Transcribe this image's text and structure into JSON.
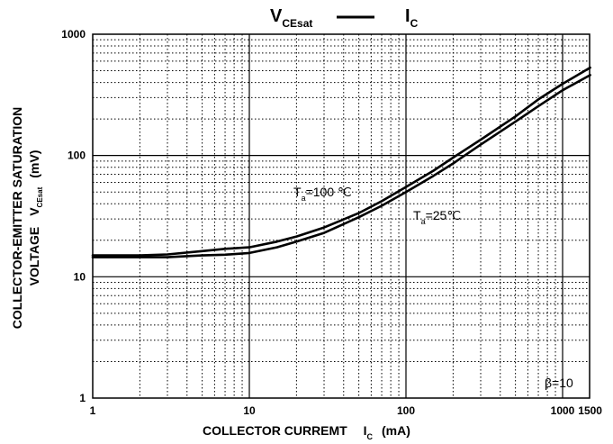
{
  "chart_data": {
    "type": "line",
    "title": {
      "main": "V",
      "main_sub": "CEsat",
      "rel": "I",
      "rel_sub": "C"
    },
    "xlabel": {
      "main": "COLLECTOR CURREMT",
      "sym": "I",
      "sub": "C",
      "unit": "(mA)"
    },
    "ylabel": {
      "line1": "COLLECTOR-EMITTER SATURATION",
      "line2_pre": "VOLTAGE",
      "sym": "V",
      "sub": "CEsat",
      "unit": "(mV)"
    },
    "x_scale": "log",
    "y_scale": "log",
    "xlim": [
      1,
      1500
    ],
    "ylim": [
      1,
      1000
    ],
    "x_ticks": [
      "1",
      "10",
      "100",
      "1000",
      "1500"
    ],
    "x_tick_values": [
      1,
      10,
      100,
      1000,
      1500
    ],
    "y_ticks": [
      "1",
      "10",
      "100",
      "1000"
    ],
    "y_tick_values": [
      1,
      10,
      100,
      1000
    ],
    "grid": true,
    "condition": "β=10",
    "series": [
      {
        "name": "Ta=100 ℃",
        "label_main": "T",
        "label_sub": "a",
        "label_rest": "=100 ℃",
        "x": [
          1,
          2,
          3,
          5,
          7,
          10,
          15,
          20,
          30,
          50,
          70,
          100,
          150,
          200,
          300,
          500,
          700,
          1000,
          1500
        ],
        "y": [
          15,
          15,
          15.3,
          16.3,
          17,
          17.5,
          19.5,
          21.5,
          25.5,
          33.5,
          42,
          55,
          75,
          96,
          135,
          210,
          290,
          390,
          530
        ]
      },
      {
        "name": "Ta=25℃",
        "label_main": "T",
        "label_sub": "a",
        "label_rest": "=25℃",
        "x": [
          1,
          2,
          3,
          5,
          7,
          10,
          15,
          20,
          30,
          50,
          70,
          100,
          150,
          200,
          300,
          500,
          700,
          1000,
          1500
        ],
        "y": [
          14.5,
          14.5,
          14.5,
          15,
          15.2,
          15.7,
          17.5,
          19.5,
          23,
          31,
          38.5,
          50,
          68,
          86,
          123,
          190,
          255,
          345,
          460
        ]
      }
    ]
  }
}
